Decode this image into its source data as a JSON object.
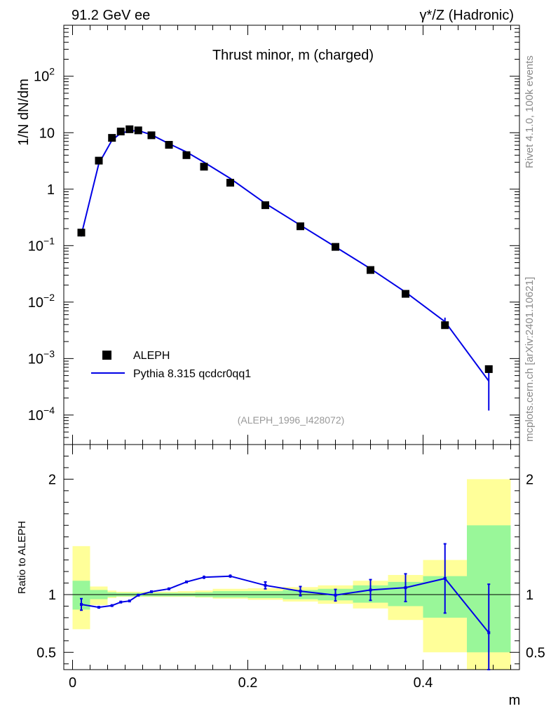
{
  "header": {
    "left": "91.2 GeV ee",
    "right": "γ*/Z (Hadronic)"
  },
  "side_labels": {
    "rivet": "Rivet 4.1.0,  100k events",
    "mcplots": "mcplots.cern.ch [arXiv:2401.10621]"
  },
  "colors": {
    "mc": "#0000e6",
    "data": "#000000",
    "band_inner": "#99f799",
    "band_outer": "#ffff99"
  },
  "chart_data": [
    {
      "type": "line",
      "panel": "main",
      "title": "Thrust minor, m (charged)",
      "ylabel": "1/N  dN/dm",
      "yscale": "log",
      "ylim": [
        3e-05,
        800
      ],
      "xlim": [
        -0.01,
        0.51
      ],
      "y_ticks": [
        {
          "value": 0.0001,
          "base": "10",
          "exp": "−4"
        },
        {
          "value": 0.001,
          "base": "10",
          "exp": "−3"
        },
        {
          "value": 0.01,
          "base": "10",
          "exp": "−2"
        },
        {
          "value": 0.1,
          "base": "10",
          "exp": "−1"
        },
        {
          "value": 1,
          "base": "1",
          "exp": ""
        },
        {
          "value": 10,
          "base": "10",
          "exp": ""
        },
        {
          "value": 100,
          "base": "10",
          "exp": "2"
        }
      ],
      "legend": {
        "position": "lower-left",
        "entries": [
          "ALEPH",
          "Pythia 8.315 qcdcr0qq1"
        ]
      },
      "annotation": "(ALEPH_1996_I428072)",
      "series": [
        {
          "name": "ALEPH",
          "marker": "square",
          "x": [
            0.01,
            0.03,
            0.045,
            0.055,
            0.065,
            0.075,
            0.09,
            0.11,
            0.13,
            0.15,
            0.18,
            0.22,
            0.26,
            0.3,
            0.34,
            0.38,
            0.425,
            0.475
          ],
          "y": [
            0.17,
            3.2,
            8.1,
            10.5,
            11.5,
            11.0,
            9.0,
            6.1,
            4.0,
            2.5,
            1.3,
            0.52,
            0.22,
            0.095,
            0.037,
            0.014,
            0.0039,
            0.00065
          ]
        },
        {
          "name": "Pythia 8.315 qcdcr0qq1",
          "x": [
            0.01,
            0.03,
            0.045,
            0.055,
            0.065,
            0.075,
            0.09,
            0.11,
            0.13,
            0.15,
            0.18,
            0.22,
            0.26,
            0.3,
            0.34,
            0.38,
            0.425,
            0.475
          ],
          "y": [
            0.155,
            2.85,
            7.4,
            9.8,
            10.7,
            10.9,
            9.2,
            6.4,
            4.55,
            3.0,
            1.55,
            0.56,
            0.23,
            0.095,
            0.039,
            0.015,
            0.0045,
            0.0004
          ],
          "yerr": [
            0.01,
            0.05,
            0.1,
            0.1,
            0.1,
            0.1,
            0.1,
            0.08,
            0.05,
            0.04,
            0.02,
            0.008,
            0.004,
            0.003,
            0.002,
            0.001,
            0.0008,
            0.00028
          ]
        }
      ]
    },
    {
      "type": "line",
      "panel": "ratio",
      "ylabel": "Ratio to ALEPH",
      "xlabel": "m",
      "ylim": [
        0.35,
        2.3
      ],
      "xlim": [
        -0.01,
        0.51
      ],
      "x_ticks": [
        0,
        0.2,
        0.4
      ],
      "y_ticks": [
        0.5,
        1,
        2
      ],
      "bins": [
        [
          0,
          0.02
        ],
        [
          0.02,
          0.04
        ],
        [
          0.04,
          0.05
        ],
        [
          0.05,
          0.06
        ],
        [
          0.06,
          0.07
        ],
        [
          0.07,
          0.08
        ],
        [
          0.08,
          0.1
        ],
        [
          0.1,
          0.12
        ],
        [
          0.12,
          0.14
        ],
        [
          0.14,
          0.16
        ],
        [
          0.16,
          0.2
        ],
        [
          0.2,
          0.24
        ],
        [
          0.24,
          0.28
        ],
        [
          0.28,
          0.32
        ],
        [
          0.32,
          0.36
        ],
        [
          0.36,
          0.4
        ],
        [
          0.4,
          0.45
        ],
        [
          0.45,
          0.5
        ]
      ],
      "band_inner": [
        [
          0.87,
          1.12
        ],
        [
          0.96,
          1.04
        ],
        [
          0.98,
          1.02
        ],
        [
          0.985,
          1.015
        ],
        [
          0.985,
          1.015
        ],
        [
          0.985,
          1.015
        ],
        [
          0.985,
          1.015
        ],
        [
          0.985,
          1.015
        ],
        [
          0.985,
          1.015
        ],
        [
          0.98,
          1.02
        ],
        [
          0.975,
          1.03
        ],
        [
          0.97,
          1.03
        ],
        [
          0.96,
          1.04
        ],
        [
          0.95,
          1.05
        ],
        [
          0.93,
          1.08
        ],
        [
          0.9,
          1.11
        ],
        [
          0.8,
          1.16
        ],
        [
          0.5,
          1.6
        ]
      ],
      "band_outer": [
        [
          0.7,
          1.42
        ],
        [
          0.91,
          1.07
        ],
        [
          0.97,
          1.035
        ],
        [
          0.98,
          1.025
        ],
        [
          0.98,
          1.025
        ],
        [
          0.98,
          1.025
        ],
        [
          0.98,
          1.025
        ],
        [
          0.98,
          1.025
        ],
        [
          0.98,
          1.03
        ],
        [
          0.975,
          1.035
        ],
        [
          0.965,
          1.05
        ],
        [
          0.955,
          1.055
        ],
        [
          0.94,
          1.065
        ],
        [
          0.92,
          1.08
        ],
        [
          0.88,
          1.12
        ],
        [
          0.78,
          1.17
        ],
        [
          0.5,
          1.3
        ],
        [
          0.32,
          2.0
        ]
      ],
      "series": [
        {
          "name": "Pythia 8.315 qcdcr0qq1",
          "x": [
            0.01,
            0.03,
            0.045,
            0.055,
            0.065,
            0.075,
            0.09,
            0.11,
            0.13,
            0.15,
            0.18,
            0.22,
            0.26,
            0.3,
            0.34,
            0.38,
            0.425,
            0.475
          ],
          "y": [
            0.915,
            0.89,
            0.905,
            0.935,
            0.945,
            0.995,
            1.025,
            1.05,
            1.11,
            1.15,
            1.16,
            1.08,
            1.03,
            0.995,
            1.04,
            1.06,
            1.14,
            0.67
          ],
          "yerr": [
            0.05,
            0.01,
            0.01,
            0.01,
            0.01,
            0.01,
            0.01,
            0.01,
            0.01,
            0.015,
            0.015,
            0.03,
            0.04,
            0.05,
            0.09,
            0.12,
            0.3,
            0.42
          ]
        }
      ]
    }
  ],
  "axis": {
    "x_label": "m"
  }
}
